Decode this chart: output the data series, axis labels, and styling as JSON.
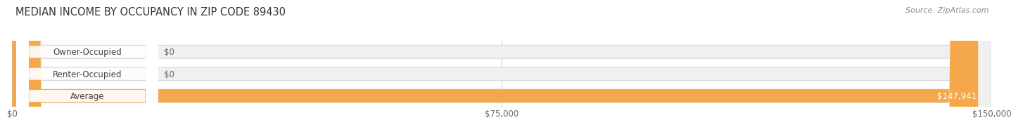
{
  "title": "MEDIAN INCOME BY OCCUPANCY IN ZIP CODE 89430",
  "source_text": "Source: ZipAtlas.com",
  "categories": [
    "Owner-Occupied",
    "Renter-Occupied",
    "Average"
  ],
  "values": [
    0,
    0,
    147941
  ],
  "max_value": 150000,
  "bar_colors": [
    "#72caca",
    "#c0a0d0",
    "#f5a84a"
  ],
  "bar_bg_color": "#f0f0f0",
  "value_labels": [
    "$0",
    "$0",
    "$147,941"
  ],
  "x_ticks": [
    0,
    75000,
    150000
  ],
  "x_tick_labels": [
    "$0",
    "$75,000",
    "$150,000"
  ],
  "background_color": "#ffffff",
  "bar_height": 0.6,
  "title_fontsize": 10.5,
  "source_fontsize": 8,
  "label_fontsize": 8.5,
  "value_fontsize": 8.5,
  "tick_fontsize": 8.5
}
